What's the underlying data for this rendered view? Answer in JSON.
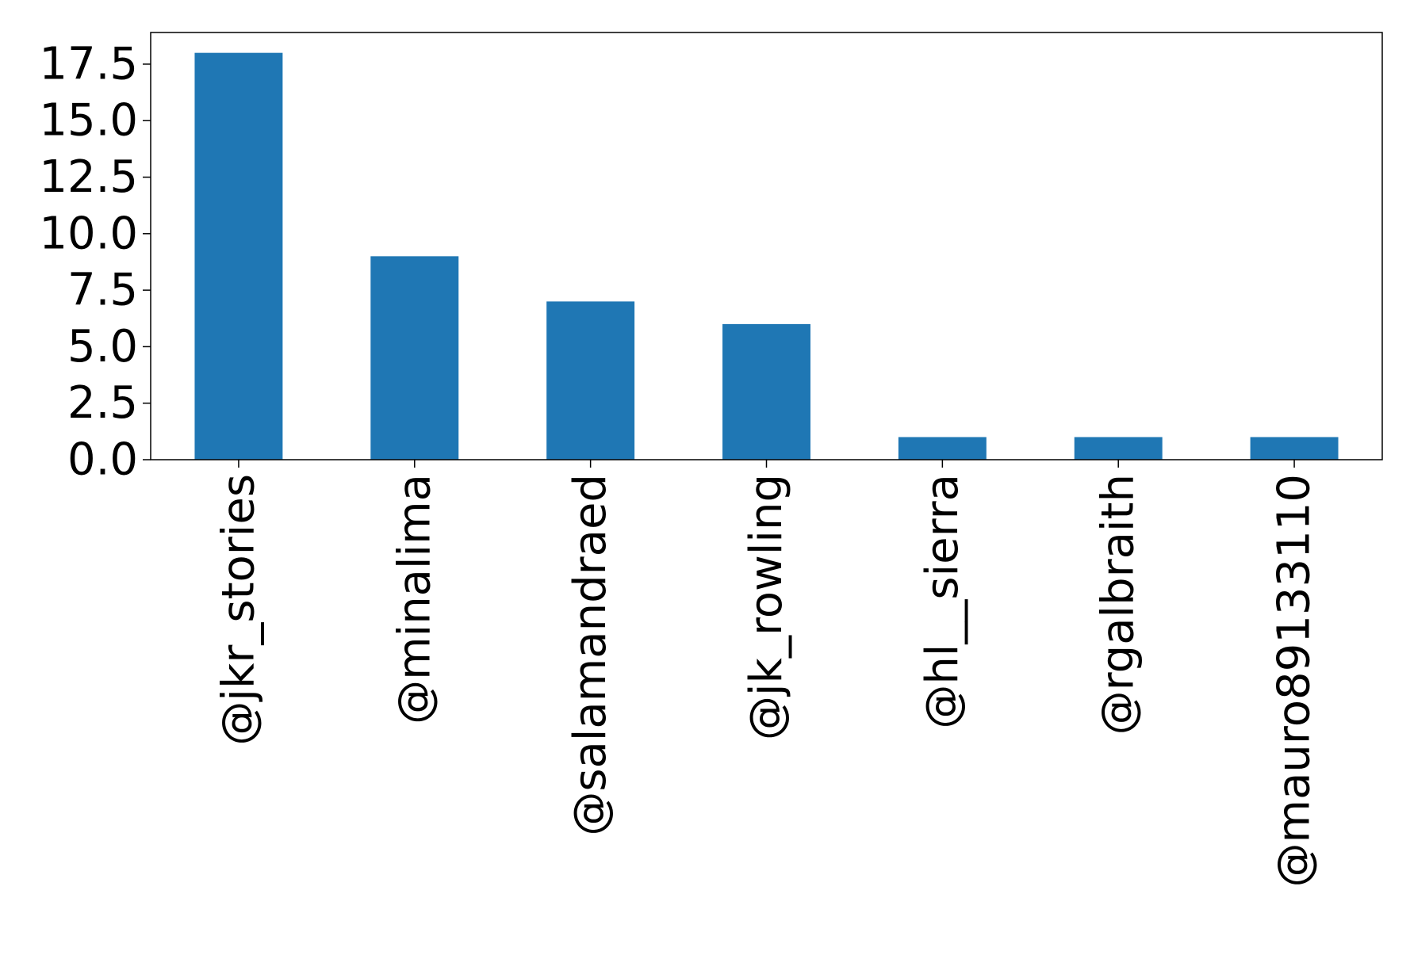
{
  "chart_data": {
    "type": "bar",
    "title": "",
    "xlabel": "",
    "ylabel": "",
    "categories": [
      "@jkr_stories",
      "@minalima",
      "@salamandraed",
      "@jk_rowling",
      "@hl__sierra",
      "@rgalbraith",
      "@mauro89133110"
    ],
    "values": [
      18,
      9,
      7,
      6,
      1,
      1,
      1
    ],
    "ylim": [
      0,
      18.9
    ],
    "yticks": [
      0.0,
      2.5,
      5.0,
      7.5,
      10.0,
      12.5,
      15.0,
      17.5
    ],
    "ytick_labels": [
      "0.0",
      "2.5",
      "5.0",
      "7.5",
      "10.0",
      "12.5",
      "15.0",
      "17.5"
    ],
    "bar_color": "#1f77b4",
    "grid": false,
    "legend": "none"
  }
}
